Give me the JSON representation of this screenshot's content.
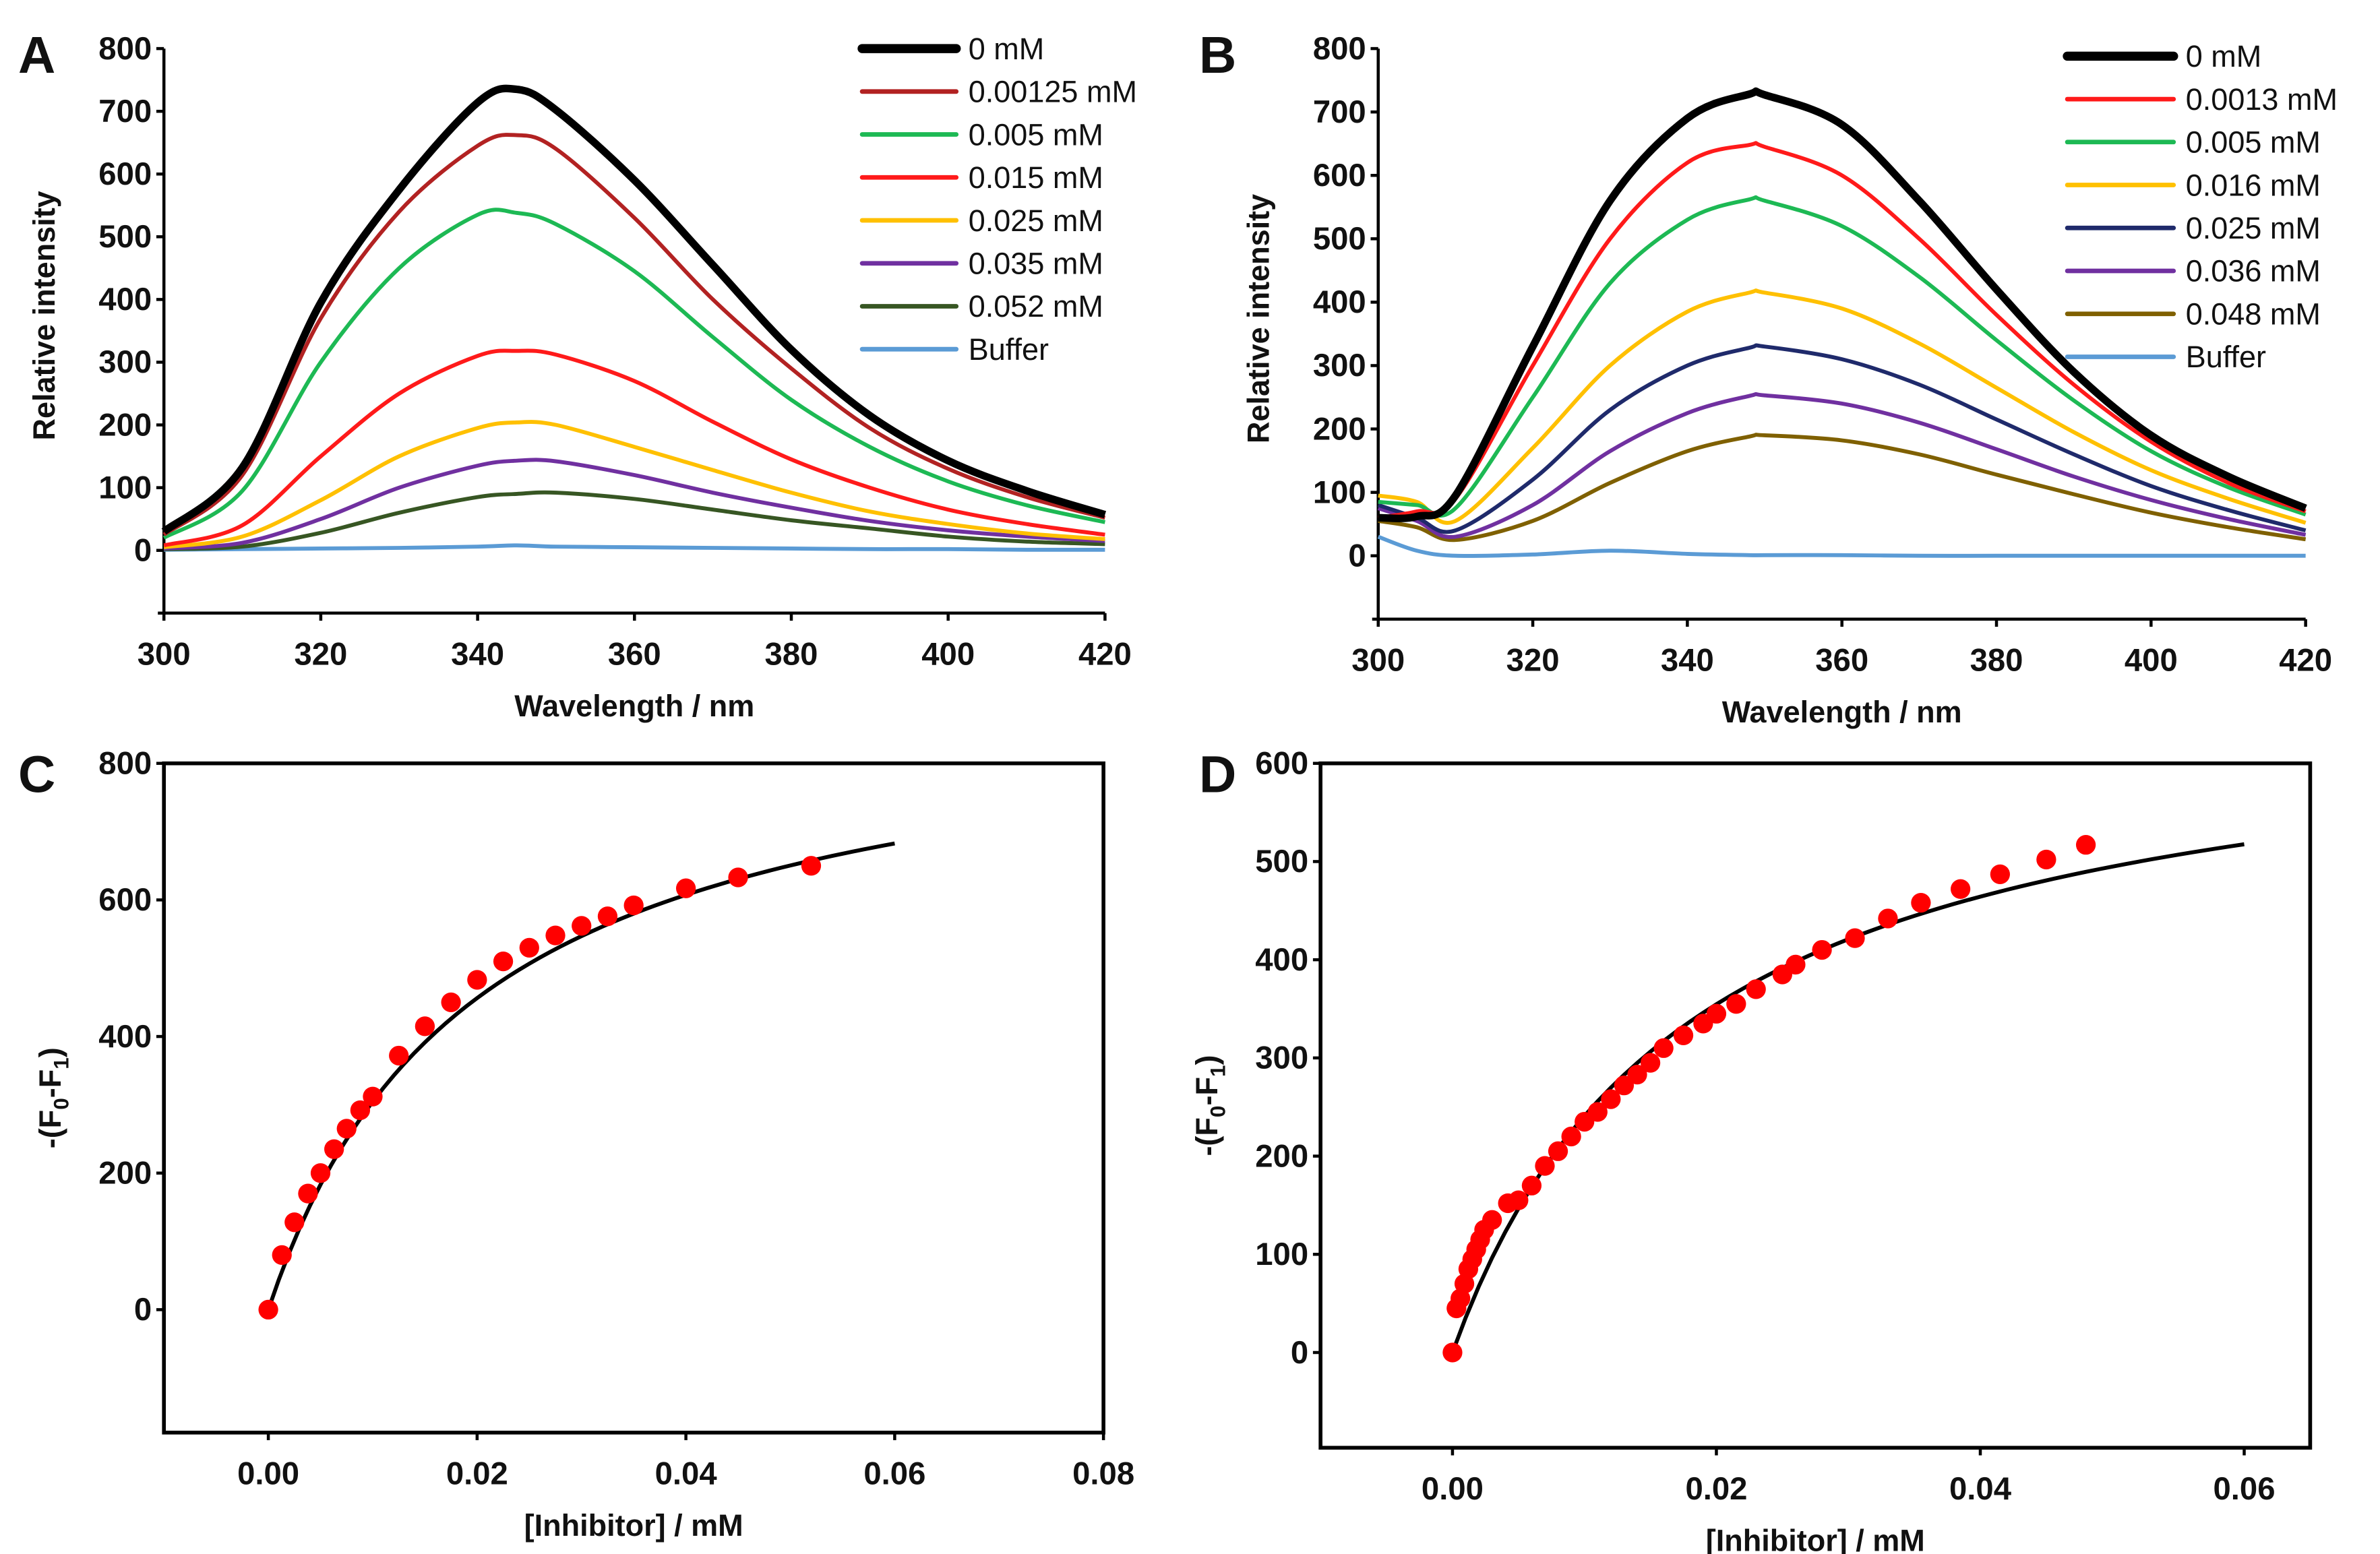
{
  "chart_data": [
    {
      "panel": "A",
      "type": "line",
      "xlabel": "Wavelength / nm",
      "ylabel": "Relative intensity",
      "xlim": [
        300,
        420
      ],
      "ylim": [
        -100,
        800
      ],
      "xticks": [
        "300",
        "320",
        "340",
        "360",
        "380",
        "400",
        "420"
      ],
      "yticks": [
        "0",
        "100",
        "200",
        "300",
        "400",
        "500",
        "600",
        "700",
        "800"
      ],
      "legend_position": "top-right",
      "x": [
        300,
        310,
        320,
        330,
        340,
        345,
        350,
        360,
        370,
        380,
        390,
        400,
        410,
        420
      ],
      "series": [
        {
          "name": "0 mM",
          "color": "#000000",
          "values": [
            30,
            132,
            395,
            575,
            714,
            735,
            702,
            590,
            455,
            320,
            215,
            143,
            95,
            57
          ]
        },
        {
          "name": "0.00125 mM",
          "color": "#b22222",
          "values": [
            25,
            120,
            370,
            540,
            645,
            662,
            640,
            530,
            400,
            290,
            195,
            130,
            85,
            52
          ]
        },
        {
          "name": "0.005 mM",
          "color": "#1db954",
          "values": [
            20,
            95,
            300,
            450,
            535,
            538,
            520,
            445,
            340,
            240,
            165,
            110,
            72,
            45
          ]
        },
        {
          "name": "0.015 mM",
          "color": "#ff1a1a",
          "values": [
            8,
            40,
            150,
            250,
            310,
            318,
            312,
            270,
            205,
            145,
            100,
            65,
            42,
            25
          ]
        },
        {
          "name": "0.025 mM",
          "color": "#ffc000",
          "values": [
            5,
            22,
            80,
            150,
            195,
            204,
            200,
            165,
            128,
            92,
            62,
            42,
            27,
            18
          ]
        },
        {
          "name": "0.035 mM",
          "color": "#7030a0",
          "values": [
            3,
            12,
            50,
            100,
            135,
            143,
            142,
            120,
            92,
            68,
            47,
            32,
            22,
            15
          ]
        },
        {
          "name": "0.052 mM",
          "color": "#375623",
          "values": [
            2,
            6,
            28,
            60,
            85,
            90,
            92,
            82,
            65,
            48,
            35,
            22,
            14,
            10
          ]
        },
        {
          "name": "Buffer",
          "color": "#5b9bd5",
          "values": [
            1,
            2,
            3,
            4,
            6,
            8,
            6,
            5,
            4,
            3,
            2,
            2,
            1,
            1
          ]
        }
      ]
    },
    {
      "panel": "B",
      "type": "line",
      "xlabel": "Wavelength / nm",
      "ylabel": "Relative intensity",
      "xlim": [
        300,
        420
      ],
      "ylim": [
        -100,
        800
      ],
      "xticks": [
        "300",
        "320",
        "340",
        "360",
        "380",
        "400",
        "420"
      ],
      "yticks": [
        "0",
        "100",
        "200",
        "300",
        "400",
        "500",
        "600",
        "700",
        "800"
      ],
      "legend_position": "top-right",
      "x": [
        300,
        305,
        310,
        320,
        330,
        340,
        348,
        350,
        360,
        370,
        380,
        390,
        400,
        410,
        420
      ],
      "series": [
        {
          "name": "0 mM",
          "color": "#000000",
          "values": [
            60,
            62,
            95,
            330,
            560,
            690,
            728,
            727,
            680,
            560,
            420,
            290,
            190,
            125,
            75
          ]
        },
        {
          "name": "0.0013 mM",
          "color": "#ff1a1a",
          "values": [
            60,
            70,
            90,
            300,
            500,
            620,
            648,
            645,
            600,
            500,
            380,
            270,
            180,
            115,
            70
          ]
        },
        {
          "name": "0.005 mM",
          "color": "#1db954",
          "values": [
            85,
            80,
            75,
            250,
            430,
            530,
            562,
            560,
            520,
            440,
            340,
            245,
            165,
            108,
            65
          ]
        },
        {
          "name": "0.016 mM",
          "color": "#ffc000",
          "values": [
            95,
            85,
            55,
            170,
            300,
            385,
            415,
            415,
            390,
            335,
            265,
            195,
            135,
            90,
            52
          ]
        },
        {
          "name": "0.025 mM",
          "color": "#1f2a6b",
          "values": [
            80,
            60,
            40,
            120,
            230,
            300,
            328,
            330,
            310,
            270,
            215,
            160,
            110,
            72,
            40
          ]
        },
        {
          "name": "0.036 mM",
          "color": "#7030a0",
          "values": [
            75,
            55,
            30,
            80,
            165,
            225,
            252,
            253,
            240,
            210,
            168,
            125,
            88,
            58,
            33
          ]
        },
        {
          "name": "0.048 mM",
          "color": "#7f6000",
          "values": [
            55,
            45,
            25,
            55,
            115,
            165,
            188,
            190,
            182,
            160,
            128,
            97,
            68,
            45,
            26
          ]
        },
        {
          "name": "Buffer",
          "color": "#5b9bd5",
          "values": [
            30,
            8,
            0,
            2,
            8,
            3,
            1,
            1,
            1,
            0,
            0,
            0,
            0,
            0,
            0
          ]
        }
      ]
    },
    {
      "panel": "C",
      "type": "scatter",
      "xlabel": "[Inhibitor] / mM",
      "ylabel_parts": [
        "-(F",
        "0",
        "-F",
        "1",
        ")"
      ],
      "xlim": [
        -0.01,
        0.08
      ],
      "ylim": [
        -180,
        800
      ],
      "xticks": [
        "0.00",
        "0.02",
        "0.04",
        "0.06",
        "0.08"
      ],
      "yticks": [
        "0",
        "200",
        "400",
        "600",
        "800"
      ],
      "points_color": "#ff0000",
      "x": [
        0,
        0.0013,
        0.0025,
        0.0038,
        0.005,
        0.0063,
        0.0075,
        0.0088,
        0.01,
        0.0125,
        0.015,
        0.0175,
        0.02,
        0.0225,
        0.025,
        0.0275,
        0.03,
        0.0325,
        0.035,
        0.04,
        0.045,
        0.052
      ],
      "y": [
        0,
        80,
        128,
        170,
        200,
        235,
        265,
        292,
        312,
        372,
        415,
        450,
        483,
        510,
        530,
        548,
        562,
        576,
        592,
        617,
        633,
        650
      ],
      "fit": {
        "model": "Bmax*x/(Kd+x)",
        "Bmax": 908,
        "Kd": 0.0198,
        "x_range": [
          0,
          0.06
        ]
      }
    },
    {
      "panel": "D",
      "type": "scatter",
      "xlabel": "[Inhibitor] / mM",
      "ylabel_parts": [
        "-(F",
        "0",
        "-F",
        "1",
        ")"
      ],
      "xlim": [
        -0.01,
        0.065
      ],
      "ylim": [
        -97,
        600
      ],
      "xticks": [
        "0.00",
        "0.02",
        "0.04",
        "0.06"
      ],
      "yticks": [
        "0",
        "100",
        "200",
        "300",
        "400",
        "500",
        "600"
      ],
      "points_color": "#ff0000",
      "x": [
        0,
        0.0003,
        0.0006,
        0.0009,
        0.0012,
        0.0015,
        0.0018,
        0.0021,
        0.0024,
        0.003,
        0.0042,
        0.005,
        0.006,
        0.007,
        0.008,
        0.009,
        0.01,
        0.011,
        0.012,
        0.013,
        0.014,
        0.015,
        0.016,
        0.0175,
        0.019,
        0.02,
        0.0215,
        0.023,
        0.025,
        0.026,
        0.028,
        0.0305,
        0.033,
        0.0355,
        0.0385,
        0.0415,
        0.045,
        0.048
      ],
      "y": [
        0,
        45,
        55,
        70,
        85,
        95,
        105,
        115,
        125,
        135,
        152,
        155,
        170,
        190,
        205,
        220,
        235,
        245,
        258,
        272,
        283,
        295,
        310,
        323,
        335,
        345,
        355,
        370,
        385,
        395,
        410,
        422,
        442,
        458,
        472,
        487,
        502,
        517
      ],
      "fit": {
        "model": "Bmax*x/(Kd+x)",
        "Bmax": 672,
        "Kd": 0.0179,
        "x_range": [
          0,
          0.06
        ]
      }
    }
  ]
}
